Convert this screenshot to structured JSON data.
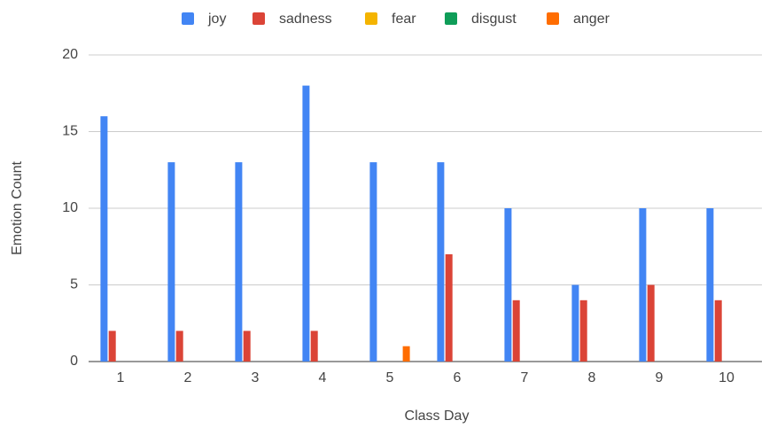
{
  "chart_data": {
    "type": "bar",
    "x_label": "Class Day",
    "y_label": "Emotion Count",
    "categories": [
      "1",
      "2",
      "3",
      "4",
      "5",
      "6",
      "7",
      "8",
      "9",
      "10"
    ],
    "series": [
      {
        "name": "joy",
        "color": "#4285f4",
        "values": [
          16,
          13,
          13,
          18,
          13,
          13,
          10,
          5,
          10,
          10
        ]
      },
      {
        "name": "sadness",
        "color": "#db4437",
        "values": [
          2,
          2,
          2,
          2,
          0,
          7,
          4,
          4,
          5,
          4
        ]
      },
      {
        "name": "fear",
        "color": "#f4b400",
        "values": [
          0,
          0,
          0,
          0,
          0,
          0,
          0,
          0,
          0,
          0
        ]
      },
      {
        "name": "disgust",
        "color": "#0f9d58",
        "values": [
          0,
          0,
          0,
          0,
          0,
          0,
          0,
          0,
          0,
          0
        ]
      },
      {
        "name": "anger",
        "color": "#ff6d01",
        "values": [
          0,
          0,
          0,
          0,
          1,
          0,
          0,
          0,
          0,
          0
        ]
      }
    ],
    "ylim": [
      0,
      20
    ],
    "yticks": [
      0,
      5,
      10,
      15,
      20
    ],
    "grid": true,
    "legend": "top"
  }
}
